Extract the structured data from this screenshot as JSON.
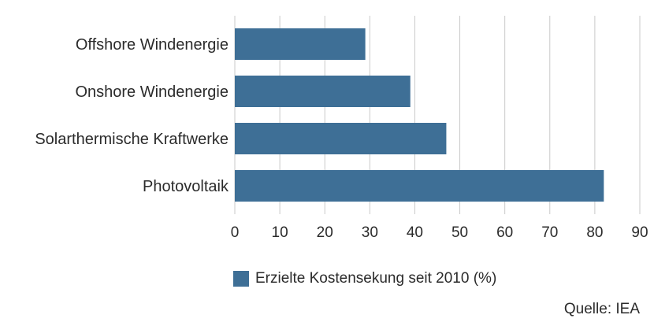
{
  "chart_data": {
    "type": "bar",
    "orientation": "horizontal",
    "categories": [
      "Offshore Windenergie",
      "Onshore Windenergie",
      "Solarthermische Kraftwerke",
      "Photovoltaik"
    ],
    "series": [
      {
        "name": "Erzielte Kostensekung seit 2010 (%)",
        "values": [
          29,
          39,
          47,
          82
        ]
      }
    ],
    "xlim": [
      0,
      90
    ],
    "xticks": [
      0,
      10,
      20,
      30,
      40,
      50,
      60,
      70,
      80,
      90
    ],
    "grid": true,
    "legend_position": "bottom",
    "bar_color": "#3e6f96",
    "grid_color": "#c9c9c9"
  },
  "source": "Quelle: IEA"
}
